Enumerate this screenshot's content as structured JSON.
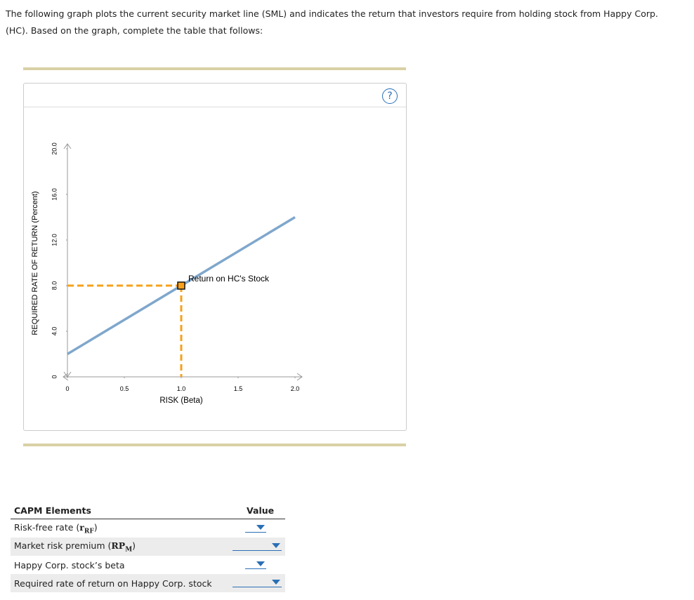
{
  "intro": "The following graph plots the current security market line (SML) and indicates the return that investors require from holding stock from Happy Corp. (HC). Based on the graph, complete the table that follows:",
  "help": "?",
  "chart_data": {
    "type": "line",
    "x_label": "RISK (Beta)",
    "y_label": "REQUIRED RATE OF RETURN (Percent)",
    "x": [
      0,
      2.0
    ],
    "series": [
      {
        "color": "#7fa7cc",
        "values": [
          2,
          14
        ]
      }
    ],
    "xlim": [
      0,
      2.0
    ],
    "ylim": [
      0,
      20
    ],
    "xticks": [
      0,
      0.5,
      {
        "value": 1,
        "label": "1.0"
      },
      1.5,
      {
        "value": 2,
        "label": "2.0"
      }
    ],
    "yticks": [
      0,
      {
        "value": 4,
        "label": "4.0"
      },
      {
        "value": 8,
        "label": "8.0"
      },
      {
        "value": 12,
        "label": "12.0"
      },
      {
        "value": 16,
        "label": "16.0"
      },
      {
        "value": 20,
        "label": "20.0"
      }
    ],
    "annotation": {
      "text": "Return on HC's Stock",
      "x": 1.0,
      "y": 8,
      "color": "#f7a11a"
    }
  },
  "table": {
    "headers": [
      "CAPM Elements",
      "Value"
    ],
    "rows": [
      {
        "label": "Risk-free rate ",
        "symbol": "r",
        "subscript": "RF"
      },
      {
        "label": "Market risk premium ",
        "symbol": "RP",
        "subscript": "M"
      },
      {
        "label": "Happy Corp. stock’s beta"
      },
      {
        "label": "Required rate of return on Happy Corp. stock"
      }
    ]
  }
}
